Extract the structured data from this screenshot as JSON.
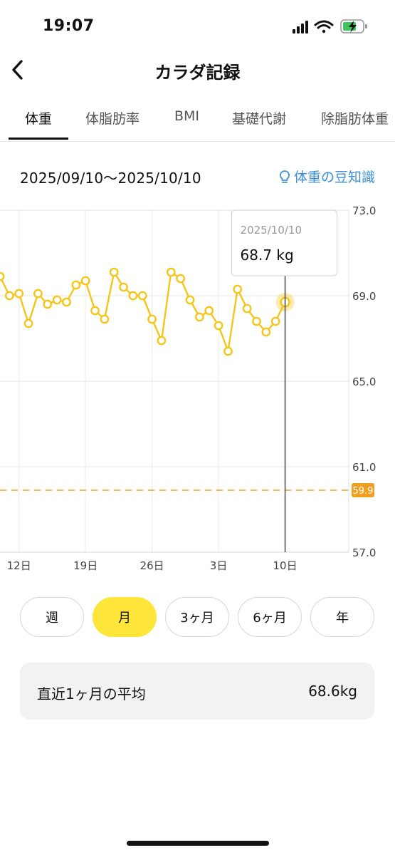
{
  "status_bar": {
    "time": "19:07"
  },
  "header": {
    "title": "カラダ記録"
  },
  "tabs": [
    {
      "label": "体重",
      "active": true
    },
    {
      "label": "体脂肪率",
      "active": false
    },
    {
      "label": "BMI",
      "active": false
    },
    {
      "label": "基礎代謝",
      "active": false
    },
    {
      "label": "除脂肪体重",
      "active": false
    }
  ],
  "date_range": "2025/09/10〜2025/10/10",
  "tips_link": "体重の豆知識",
  "colors": {
    "accent_yellow": "#fde53a",
    "line_yellow": "#f5c518",
    "goal_orange": "#f0a020",
    "link_blue": "#3b8fd9"
  },
  "chart_data": {
    "type": "line",
    "y_ticks": [
      "73.0",
      "69.0",
      "65.0",
      "61.0",
      "57.0"
    ],
    "ylim": [
      57.0,
      73.0
    ],
    "x_tick_labels": [
      "12日",
      "19日",
      "26日",
      "3日",
      "10日"
    ],
    "x_tick_days": [
      2,
      9,
      16,
      23,
      30
    ],
    "x_range": [
      0,
      36.7
    ],
    "goal_value": 59.9,
    "goal_label": "59.9",
    "series": [
      {
        "values": [
          {
            "day": 0,
            "v": 69.9
          },
          {
            "day": 1,
            "v": 69.0
          },
          {
            "day": 2,
            "v": 69.1
          },
          {
            "day": 3,
            "v": 67.7
          },
          {
            "day": 4,
            "v": 69.1
          },
          {
            "day": 5,
            "v": 68.6
          },
          {
            "day": 6,
            "v": 68.8
          },
          {
            "day": 7,
            "v": 68.7
          },
          {
            "day": 8,
            "v": 69.5
          },
          {
            "day": 9,
            "v": 69.7
          },
          {
            "day": 10,
            "v": 68.3
          },
          {
            "day": 11,
            "v": 67.9
          },
          {
            "day": 12,
            "v": 70.1
          },
          {
            "day": 13,
            "v": 69.4
          },
          {
            "day": 14,
            "v": 69.0
          },
          {
            "day": 15,
            "v": 69.0
          },
          {
            "day": 16,
            "v": 67.9
          },
          {
            "day": 17,
            "v": 66.9
          },
          {
            "day": 18,
            "v": 70.1
          },
          {
            "day": 19,
            "v": 69.8
          },
          {
            "day": 20,
            "v": 68.8
          },
          {
            "day": 21,
            "v": 68.0
          },
          {
            "day": 22,
            "v": 68.3
          },
          {
            "day": 23,
            "v": 67.6
          },
          {
            "day": 24,
            "v": 66.4
          },
          {
            "day": 25,
            "v": 69.3
          },
          {
            "day": 26,
            "v": 68.4
          },
          {
            "day": 27,
            "v": 67.8
          },
          {
            "day": 28,
            "v": 67.3
          },
          {
            "day": 29,
            "v": 67.8
          },
          {
            "day": 30,
            "v": 68.7
          }
        ]
      }
    ],
    "selected": {
      "day": 30,
      "date": "2025/10/10",
      "value_label": "68.7 kg"
    }
  },
  "period_buttons": [
    {
      "label": "週",
      "active": false
    },
    {
      "label": "月",
      "active": true
    },
    {
      "label": "3ヶ月",
      "active": false
    },
    {
      "label": "6ヶ月",
      "active": false
    },
    {
      "label": "年",
      "active": false
    }
  ],
  "average": {
    "label": "直近1ヶ月の平均",
    "value": "68.6kg"
  }
}
